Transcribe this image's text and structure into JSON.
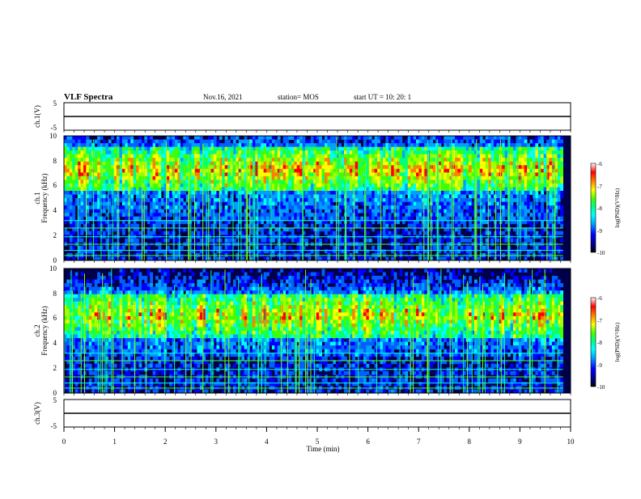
{
  "header": {
    "title": "VLF Spectra",
    "date": "Nov.16, 2021",
    "station": "station= MOS",
    "start_ut": "start  UT =   10: 20: 1"
  },
  "chart_data": [
    {
      "type": "line",
      "panel": "ch1-voltage",
      "ylabel": "ch.1(V)",
      "ylim": [
        -5,
        5
      ],
      "y_tick_labels": [
        "5",
        "-5"
      ],
      "x_range_min": [
        0,
        10
      ],
      "value_level_v": 0
    },
    {
      "type": "heatmap",
      "panel": "ch1-spectrogram",
      "ylabel": "ch.1\nFrequency (kHz)",
      "ylim": [
        0,
        10
      ],
      "y_tick_labels": [
        "0",
        "2",
        "4",
        "6",
        "8",
        "10"
      ],
      "x_range_min": [
        0,
        10
      ],
      "data_end_min": 9.85,
      "intense_band_khz": [
        5.5,
        9.0
      ],
      "colorbar": {
        "label": "log(PSD)(V²/Hz)",
        "min": -10,
        "max": -6,
        "tick_labels": [
          "-6",
          "-7",
          "-8",
          "-9",
          "-10"
        ]
      }
    },
    {
      "type": "heatmap",
      "panel": "ch2-spectrogram",
      "ylabel": "ch.2\nFrequency (kHz)",
      "ylim": [
        0,
        10
      ],
      "y_tick_labels": [
        "0",
        "2",
        "4",
        "6",
        "8",
        "10"
      ],
      "x_range_min": [
        0,
        10
      ],
      "data_end_min": 9.85,
      "intense_band_khz": [
        4.5,
        8.0
      ],
      "colorbar": {
        "label": "log(PSD)(V²/Hz)",
        "min": -10,
        "max": -6,
        "tick_labels": [
          "-6",
          "-7",
          "-8",
          "-9",
          "-10"
        ]
      }
    },
    {
      "type": "line",
      "panel": "ch3-voltage",
      "ylabel": "ch.3(V)",
      "ylim": [
        -5,
        5
      ],
      "y_tick_labels": [
        "5",
        "-5"
      ],
      "x_range_min": [
        0,
        10
      ],
      "value_level_v": 0
    }
  ],
  "x_axis": {
    "label": "Time  (min)",
    "tick_labels": [
      "0",
      "1",
      "2",
      "3",
      "4",
      "5",
      "6",
      "7",
      "8",
      "9",
      "10"
    ]
  },
  "colors": {
    "colormap": [
      "#000000",
      "#000080",
      "#0000ff",
      "#00a0ff",
      "#00ffff",
      "#00ff80",
      "#40ff00",
      "#ffff00",
      "#ff8000",
      "#ff0000",
      "#ffffff"
    ]
  }
}
